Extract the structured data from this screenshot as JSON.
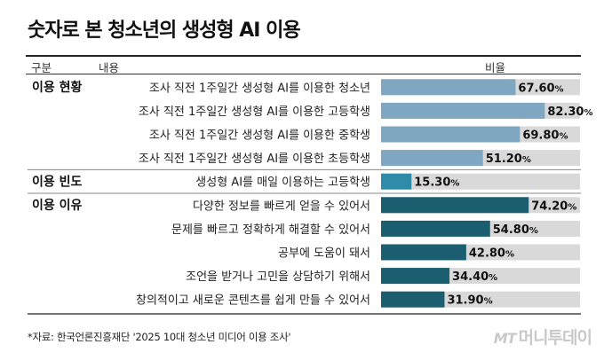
{
  "title": "숫자로 본 청소년의 생성형 AI 이용",
  "header": {
    "col_group": "구분",
    "col_content": "내용",
    "col_ratio": "비율"
  },
  "source": "*자료: 한국언론진흥재단 '2025 10대 청소년 미디어 이용 조사'",
  "watermark": {
    "mt": "MT",
    "name": "머니투데이"
  },
  "colors": {
    "bar_bg": "#d9d9d9",
    "current": "#7fa7c2",
    "frequency": "#2e8ca8",
    "reason": "#1b5e6f",
    "divider": "#888888"
  },
  "chart_data": {
    "type": "bar",
    "unit": "%",
    "xlim": [
      0,
      100
    ],
    "groups": [
      {
        "name": "이용 현황",
        "color_key": "current",
        "items": [
          {
            "label": "조사 직전 1주일간 생성형 AI를 이용한 청소년",
            "value": 67.6,
            "display": "67.60"
          },
          {
            "label": "조사 직전 1주일간 생성형 AI를 이용한 고등학생",
            "value": 82.3,
            "display": "82.30"
          },
          {
            "label": "조사 직전 1주일간 생성형 AI를 이용한 중학생",
            "value": 69.8,
            "display": "69.80"
          },
          {
            "label": "조사 직전 1주일간 생성형 AI를 이용한 초등학생",
            "value": 51.2,
            "display": "51.20"
          }
        ]
      },
      {
        "name": "이용 빈도",
        "color_key": "frequency",
        "items": [
          {
            "label": "생성형 AI를 매일 이용하는 고등학생",
            "value": 15.3,
            "display": "15.30"
          }
        ]
      },
      {
        "name": "이용 이유",
        "color_key": "reason",
        "items": [
          {
            "label": "다양한 정보를 빠르게 얻을 수 있어서",
            "value": 74.2,
            "display": "74.20"
          },
          {
            "label": "문제를 빠르고 정확하게 해결할 수 있어서",
            "value": 54.8,
            "display": "54.80"
          },
          {
            "label": "공부에 도움이 돼서",
            "value": 42.8,
            "display": "42.80"
          },
          {
            "label": "조언을 받거나 고민을 상담하기 위해서",
            "value": 34.4,
            "display": "34.40"
          },
          {
            "label": "창의적이고 새로운 콘텐츠를 쉽게 만들 수 있어서",
            "value": 31.9,
            "display": "31.90"
          }
        ]
      }
    ]
  }
}
